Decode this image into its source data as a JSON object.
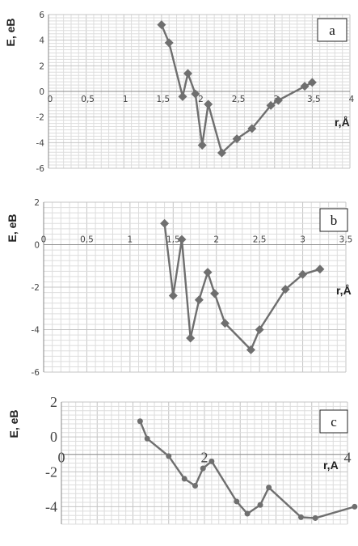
{
  "chart_data": [
    {
      "type": "line",
      "panel_label": "a",
      "ylabel": "E, eB",
      "xlabel": "r,Å",
      "xlim": [
        0,
        4
      ],
      "ylim": [
        -6,
        6
      ],
      "x_ticks": [
        "0",
        "0,5",
        "1",
        "1,5",
        "2",
        "2,5",
        "3",
        "3,5",
        "4"
      ],
      "y_ticks": [
        "6",
        "4",
        "2",
        "0",
        "-2",
        "-4",
        "-6"
      ],
      "grid": true,
      "marker": "diamond",
      "points": [
        {
          "x": 1.5,
          "y": 5.2
        },
        {
          "x": 1.6,
          "y": 3.8
        },
        {
          "x": 1.78,
          "y": -0.4
        },
        {
          "x": 1.85,
          "y": 1.4
        },
        {
          "x": 1.95,
          "y": -0.2
        },
        {
          "x": 2.04,
          "y": -4.2
        },
        {
          "x": 2.12,
          "y": -1.0
        },
        {
          "x": 2.3,
          "y": -4.8
        },
        {
          "x": 2.5,
          "y": -3.7
        },
        {
          "x": 2.7,
          "y": -2.9
        },
        {
          "x": 2.95,
          "y": -1.1
        },
        {
          "x": 3.05,
          "y": -0.7
        },
        {
          "x": 3.4,
          "y": 0.4
        },
        {
          "x": 3.5,
          "y": 0.7
        }
      ]
    },
    {
      "type": "line",
      "panel_label": "b",
      "ylabel": "E, eB",
      "xlabel": "r,Å",
      "xlim": [
        0,
        3.5
      ],
      "ylim": [
        -6,
        2
      ],
      "x_ticks": [
        "0",
        "0,5",
        "1",
        "1,5",
        "2",
        "2,5",
        "3",
        "3,5"
      ],
      "y_ticks": [
        "2",
        "0",
        "-2",
        "-4",
        "-6"
      ],
      "grid": true,
      "marker": "diamond",
      "points": [
        {
          "x": 1.4,
          "y": 1.0
        },
        {
          "x": 1.5,
          "y": -2.4
        },
        {
          "x": 1.6,
          "y": 0.25
        },
        {
          "x": 1.7,
          "y": -4.4
        },
        {
          "x": 1.8,
          "y": -2.6
        },
        {
          "x": 1.9,
          "y": -1.3
        },
        {
          "x": 1.98,
          "y": -2.3
        },
        {
          "x": 2.1,
          "y": -3.7
        },
        {
          "x": 2.4,
          "y": -4.95
        },
        {
          "x": 2.5,
          "y": -4.0
        },
        {
          "x": 2.8,
          "y": -2.1
        },
        {
          "x": 3.0,
          "y": -1.4
        },
        {
          "x": 3.2,
          "y": -1.15
        }
      ]
    },
    {
      "type": "line",
      "panel_label": "c",
      "ylabel": "E, eB",
      "xlabel": "r,A",
      "xlim": [
        0,
        4
      ],
      "ylim": [
        -5,
        2
      ],
      "x_ticks": [
        "0",
        "2",
        "4"
      ],
      "y_ticks": [
        "2",
        "0",
        "-2",
        "-4"
      ],
      "grid": true,
      "marker": "dot",
      "points": [
        {
          "x": 1.1,
          "y": 0.9
        },
        {
          "x": 1.2,
          "y": -0.1
        },
        {
          "x": 1.5,
          "y": -1.1
        },
        {
          "x": 1.72,
          "y": -2.4
        },
        {
          "x": 1.87,
          "y": -2.8
        },
        {
          "x": 1.98,
          "y": -1.8
        },
        {
          "x": 2.1,
          "y": -1.4
        },
        {
          "x": 2.45,
          "y": -3.7
        },
        {
          "x": 2.6,
          "y": -4.4
        },
        {
          "x": 2.78,
          "y": -3.9
        },
        {
          "x": 2.9,
          "y": -2.9
        },
        {
          "x": 3.35,
          "y": -4.6
        },
        {
          "x": 3.55,
          "y": -4.65
        },
        {
          "x": 4.1,
          "y": -4.0
        }
      ]
    }
  ]
}
